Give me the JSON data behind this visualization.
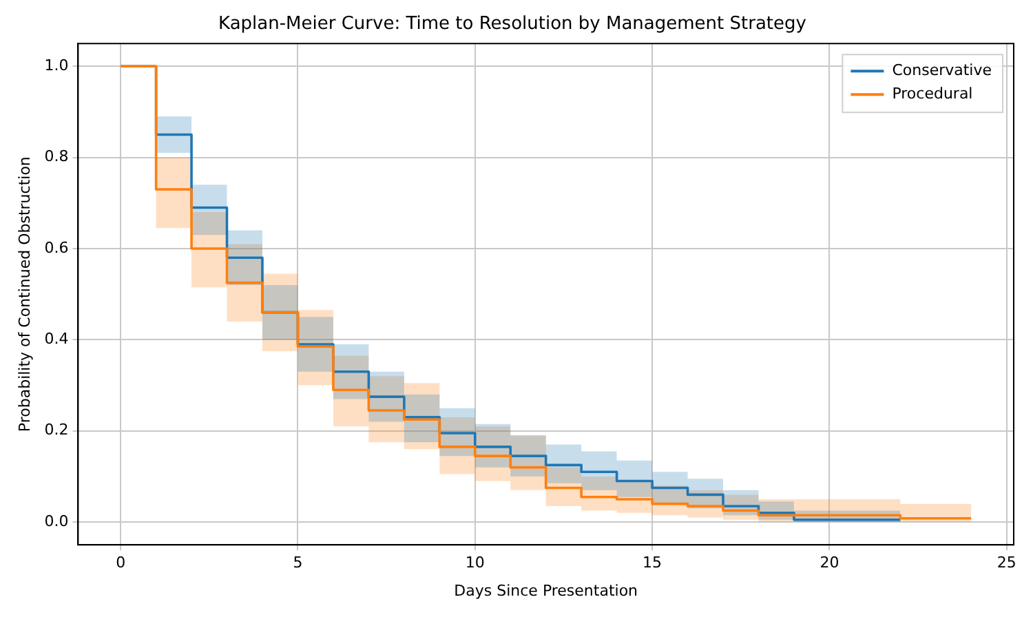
{
  "chart_data": {
    "type": "step",
    "title": "Kaplan-Meier Curve: Time to Resolution by Management Strategy",
    "xlabel": "Days Since Presentation",
    "ylabel": "Probability of Continued Obstruction",
    "xlim": [
      -1.2,
      25.2
    ],
    "ylim": [
      -0.05,
      1.05
    ],
    "xticks": [
      0,
      5,
      10,
      15,
      20,
      25
    ],
    "yticks": [
      {
        "value": 0,
        "label": "0.0"
      },
      0.2,
      0.4,
      0.6,
      0.8,
      {
        "value": 1,
        "label": "1.0"
      }
    ],
    "grid": true,
    "legend": "top right",
    "series": [
      {
        "name": "Conservative",
        "color": "#1f77b4",
        "x": [
          0,
          1,
          2,
          3,
          4,
          5,
          6,
          7,
          8,
          9,
          10,
          11,
          12,
          13,
          14,
          15,
          16,
          17,
          18,
          19,
          22
        ],
        "values": [
          1.0,
          0.85,
          0.69,
          0.58,
          0.46,
          0.39,
          0.33,
          0.275,
          0.23,
          0.195,
          0.165,
          0.145,
          0.125,
          0.11,
          0.09,
          0.075,
          0.06,
          0.035,
          0.02,
          0.005,
          0.005
        ],
        "lower": [
          1.0,
          0.81,
          0.63,
          0.52,
          0.4,
          0.33,
          0.27,
          0.22,
          0.175,
          0.145,
          0.12,
          0.1,
          0.085,
          0.07,
          0.055,
          0.04,
          0.03,
          0.015,
          0.005,
          0.0,
          0.0
        ],
        "upper": [
          1.0,
          0.89,
          0.74,
          0.64,
          0.52,
          0.45,
          0.39,
          0.33,
          0.28,
          0.25,
          0.215,
          0.19,
          0.17,
          0.155,
          0.135,
          0.11,
          0.095,
          0.07,
          0.045,
          0.025,
          0.025
        ]
      },
      {
        "name": "Procedural",
        "color": "#ff7f0e",
        "x": [
          0,
          1,
          2,
          3,
          4,
          5,
          6,
          7,
          8,
          9,
          10,
          11,
          12,
          13,
          14,
          15,
          16,
          17,
          18,
          22,
          24
        ],
        "values": [
          1.0,
          0.73,
          0.6,
          0.525,
          0.46,
          0.385,
          0.29,
          0.245,
          0.225,
          0.165,
          0.145,
          0.12,
          0.075,
          0.055,
          0.05,
          0.04,
          0.035,
          0.025,
          0.015,
          0.008,
          0.008
        ],
        "lower": [
          1.0,
          0.645,
          0.515,
          0.44,
          0.375,
          0.3,
          0.21,
          0.175,
          0.16,
          0.105,
          0.09,
          0.07,
          0.035,
          0.025,
          0.02,
          0.015,
          0.01,
          0.005,
          0.0,
          0.0,
          0.0
        ],
        "upper": [
          1.0,
          0.8,
          0.68,
          0.61,
          0.545,
          0.465,
          0.365,
          0.32,
          0.305,
          0.23,
          0.21,
          0.19,
          0.12,
          0.1,
          0.09,
          0.08,
          0.07,
          0.06,
          0.05,
          0.04,
          0.04
        ]
      }
    ]
  }
}
